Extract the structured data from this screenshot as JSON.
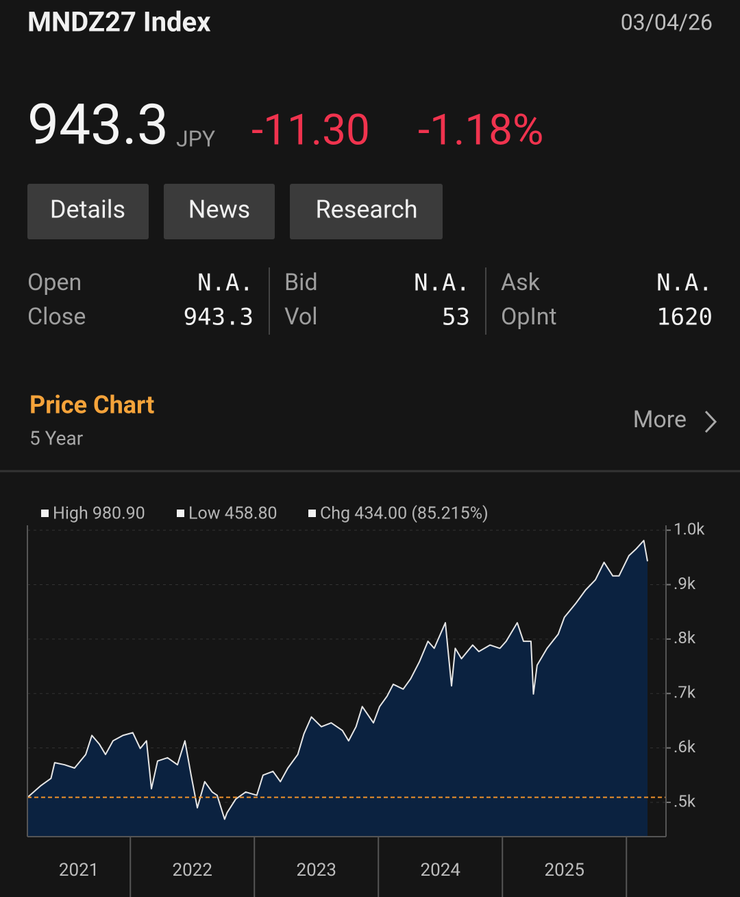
{
  "header": {
    "title": "MNDZ27 Index",
    "date": "03/04/26"
  },
  "quote": {
    "price": 943.3,
    "currency": "JPY",
    "change": "-11.30",
    "change_pct": "-1.18%"
  },
  "tabs": [
    "Details",
    "News",
    "Research"
  ],
  "stats": [
    [
      {
        "label": "Open",
        "value": "N.A."
      },
      {
        "label": "Close",
        "value": 943.3
      }
    ],
    [
      {
        "label": "Bid",
        "value": "N.A."
      },
      {
        "label": "Vol",
        "value": 53
      }
    ],
    [
      {
        "label": "Ask",
        "value": "N.A."
      },
      {
        "label": "OpInt",
        "value": 1620
      }
    ]
  ],
  "section": {
    "title": "Price Chart",
    "subtitle": "5 Year",
    "more": "More"
  },
  "chart_data": {
    "type": "area",
    "legend": [
      "High 980.90",
      "Low 458.80",
      "Chg 434.00 (85.215%)"
    ],
    "series": [
      {
        "color": "#e6e6e6",
        "fill": "#0b2240",
        "x": [
          2021.17,
          2021.28,
          2021.36,
          2021.39,
          2021.47,
          2021.55,
          2021.64,
          2021.69,
          2021.75,
          2021.8,
          2021.86,
          2021.94,
          2022.02,
          2022.08,
          2022.13,
          2022.17,
          2022.22,
          2022.3,
          2022.38,
          2022.44,
          2022.49,
          2022.54,
          2022.6,
          2022.66,
          2022.7,
          2022.76,
          2022.78,
          2022.85,
          2022.93,
          2023.02,
          2023.07,
          2023.15,
          2023.21,
          2023.27,
          2023.35,
          2023.4,
          2023.46,
          2023.54,
          2023.62,
          2023.71,
          2023.76,
          2023.82,
          2023.87,
          2023.96,
          2024.01,
          2024.07,
          2024.12,
          2024.2,
          2024.26,
          2024.33,
          2024.4,
          2024.45,
          2024.54,
          2024.56,
          2024.59,
          2024.62,
          2024.67,
          2024.76,
          2024.81,
          2024.9,
          2024.98,
          2025.03,
          2025.12,
          2025.17,
          2025.23,
          2025.25,
          2025.28,
          2025.36,
          2025.45,
          2025.5,
          2025.59,
          2025.67,
          2025.75,
          2025.82,
          2025.89,
          2025.94,
          2026.02,
          2026.08,
          2026.14,
          2026.17
        ],
        "values": [
          509,
          531,
          544,
          573,
          569,
          563,
          588,
          623,
          607,
          588,
          613,
          623,
          628,
          599,
          613,
          525,
          576,
          582,
          569,
          613,
          550,
          490,
          538,
          519,
          513,
          469,
          481,
          506,
          519,
          513,
          550,
          557,
          538,
          563,
          588,
          626,
          657,
          639,
          646,
          632,
          613,
          639,
          676,
          646,
          676,
          695,
          717,
          708,
          727,
          758,
          796,
          783,
          830,
          783,
          714,
          783,
          764,
          789,
          777,
          789,
          783,
          796,
          830,
          796,
          796,
          699,
          752,
          783,
          809,
          840,
          865,
          890,
          909,
          941,
          916,
          916,
          953,
          966,
          981,
          943
        ]
      }
    ],
    "xlim": [
      2021.17,
      2026.17
    ],
    "xticks": [
      2022,
      2023,
      2024,
      2025,
      2026
    ],
    "x_labels": [
      2021,
      2022,
      2023,
      2024,
      2025
    ],
    "ylim": [
      437,
      1009
    ],
    "yticks": [
      {
        "value": 1000,
        "label": "1.0k"
      },
      {
        "value": 900,
        "label": ".9k"
      },
      {
        "value": 800,
        "label": ".8k"
      },
      {
        "value": 700,
        "label": ".7k"
      },
      {
        "value": 600,
        "label": ".6k"
      },
      {
        "value": 500,
        "label": ".5k"
      }
    ],
    "grid": true,
    "reference_line": {
      "value": 509.3,
      "color": "#f0922b"
    }
  }
}
